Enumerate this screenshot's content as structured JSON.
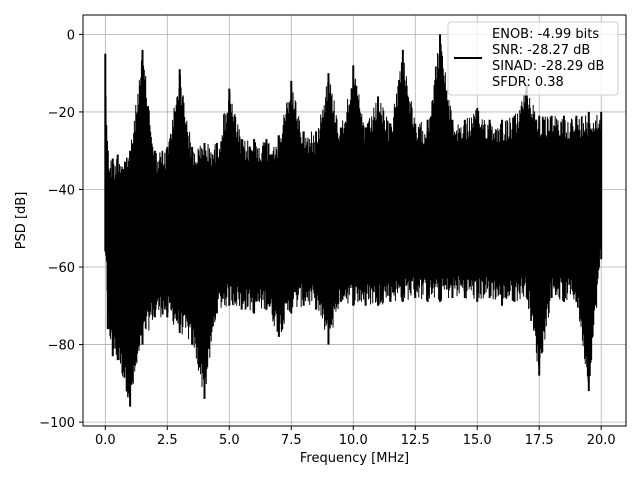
{
  "chart_data": {
    "type": "line",
    "title": "",
    "xlabel": "Frequency [MHz]",
    "ylabel": "PSD [dB]",
    "xlim": [
      -0.9,
      21.0
    ],
    "ylim": [
      -101,
      5
    ],
    "xticks": [
      0.0,
      2.5,
      5.0,
      7.5,
      10.0,
      12.5,
      15.0,
      17.5,
      20.0
    ],
    "xtick_labels": [
      "0.0",
      "2.5",
      "5.0",
      "7.5",
      "10.0",
      "12.5",
      "15.0",
      "17.5",
      "20.0"
    ],
    "yticks": [
      0,
      -20,
      -40,
      -60,
      -80,
      -100
    ],
    "ytick_labels": [
      "0",
      "−20",
      "−40",
      "−60",
      "−80",
      "−100"
    ],
    "grid": true,
    "legend_position": "top-right",
    "series": [
      {
        "color": "#000000",
        "x": [
          0.0,
          0.1,
          0.3,
          0.5,
          1.0,
          1.5,
          2.0,
          2.5,
          3.0,
          3.5,
          4.0,
          4.5,
          5.0,
          5.5,
          6.0,
          6.5,
          7.0,
          7.5,
          8.0,
          8.5,
          9.0,
          9.5,
          10.0,
          10.5,
          11.0,
          11.5,
          12.0,
          12.5,
          13.0,
          13.5,
          14.0,
          14.5,
          15.0,
          15.5,
          16.0,
          16.5,
          17.0,
          17.5,
          18.0,
          18.5,
          19.0,
          19.5,
          20.0
        ],
        "upper": [
          -5,
          -30,
          -32,
          -31,
          -30,
          -4,
          -30,
          -29,
          -9,
          -29,
          -28,
          -28,
          -14,
          -27,
          -27,
          -27,
          -26,
          -12,
          -25,
          -25,
          -10,
          -24,
          -8,
          -24,
          -16,
          -23,
          -4,
          -23,
          -22,
          0,
          -22,
          -22,
          -19,
          -22,
          -22,
          -21,
          -13,
          -21,
          -21,
          -21,
          -21,
          -20,
          -20
        ],
        "lower": [
          -56,
          -76,
          -83,
          -84,
          -96,
          -80,
          -73,
          -73,
          -77,
          -80,
          -94,
          -72,
          -70,
          -71,
          -72,
          -71,
          -78,
          -72,
          -70,
          -71,
          -80,
          -69,
          -70,
          -70,
          -70,
          -69,
          -69,
          -68,
          -69,
          -69,
          -68,
          -68,
          -69,
          -68,
          -70,
          -69,
          -68,
          -88,
          -68,
          -69,
          -69,
          -92,
          -58
        ]
      }
    ]
  },
  "legend": {
    "entries": [
      "ENOB: -4.99 bits",
      "SNR: -28.27 dB",
      "SINAD: -28.29 dB",
      "SFDR: 0.38"
    ]
  }
}
